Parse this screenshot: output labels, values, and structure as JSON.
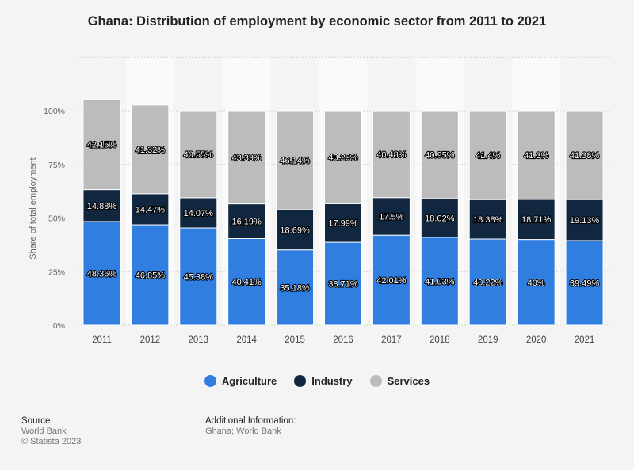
{
  "title": "Ghana: Distribution of employment by economic sector from 2011 to 2021",
  "chart_data": {
    "type": "bar",
    "stacked": true,
    "categories": [
      "2011",
      "2012",
      "2013",
      "2014",
      "2015",
      "2016",
      "2017",
      "2018",
      "2019",
      "2020",
      "2021"
    ],
    "series": [
      {
        "name": "Agriculture",
        "color": "#2f7ee0",
        "values": [
          48.36,
          46.85,
          45.38,
          40.41,
          35.18,
          38.71,
          42.01,
          41.03,
          40.22,
          40,
          39.49
        ],
        "labels": [
          "48.36%",
          "46.85%",
          "45.38%",
          "40.41%",
          "35.18%",
          "38.71%",
          "42.01%",
          "41.03%",
          "40.22%",
          "40%",
          "39.49%"
        ]
      },
      {
        "name": "Industry",
        "color": "#11263f",
        "values": [
          14.88,
          14.47,
          14.07,
          16.19,
          18.69,
          17.99,
          17.5,
          18.02,
          18.38,
          18.71,
          19.13
        ],
        "labels": [
          "14.88%",
          "14.47%",
          "14.07%",
          "16.19%",
          "18.69%",
          "17.99%",
          "17.5%",
          "18.02%",
          "18.38%",
          "18.71%",
          "19.13%"
        ]
      },
      {
        "name": "Services",
        "color": "#bcbcbc",
        "values": [
          42.15,
          41.32,
          40.55,
          43.39,
          46.14,
          43.29,
          40.48,
          40.95,
          41.4,
          41.3,
          41.38
        ],
        "labels": [
          "42.15%",
          "41.32%",
          "40.55%",
          "43.39%",
          "46.14%",
          "43.29%",
          "40.48%",
          "40.95%",
          "41.4%",
          "41.3%",
          "41.38%"
        ]
      }
    ],
    "ylabel": "Share of total employment",
    "ylim": [
      0,
      125
    ],
    "yticks": [
      0,
      25,
      50,
      75,
      100
    ],
    "ytick_labels": [
      "0%",
      "25%",
      "50%",
      "75%",
      "100%"
    ],
    "grid": true,
    "legend": "bottom-center"
  },
  "footer": {
    "source_heading": "Source",
    "source_name": "World Bank",
    "copyright": "© Statista 2023",
    "additional_heading": "Additional Information:",
    "additional_text": "Ghana; World Bank"
  }
}
